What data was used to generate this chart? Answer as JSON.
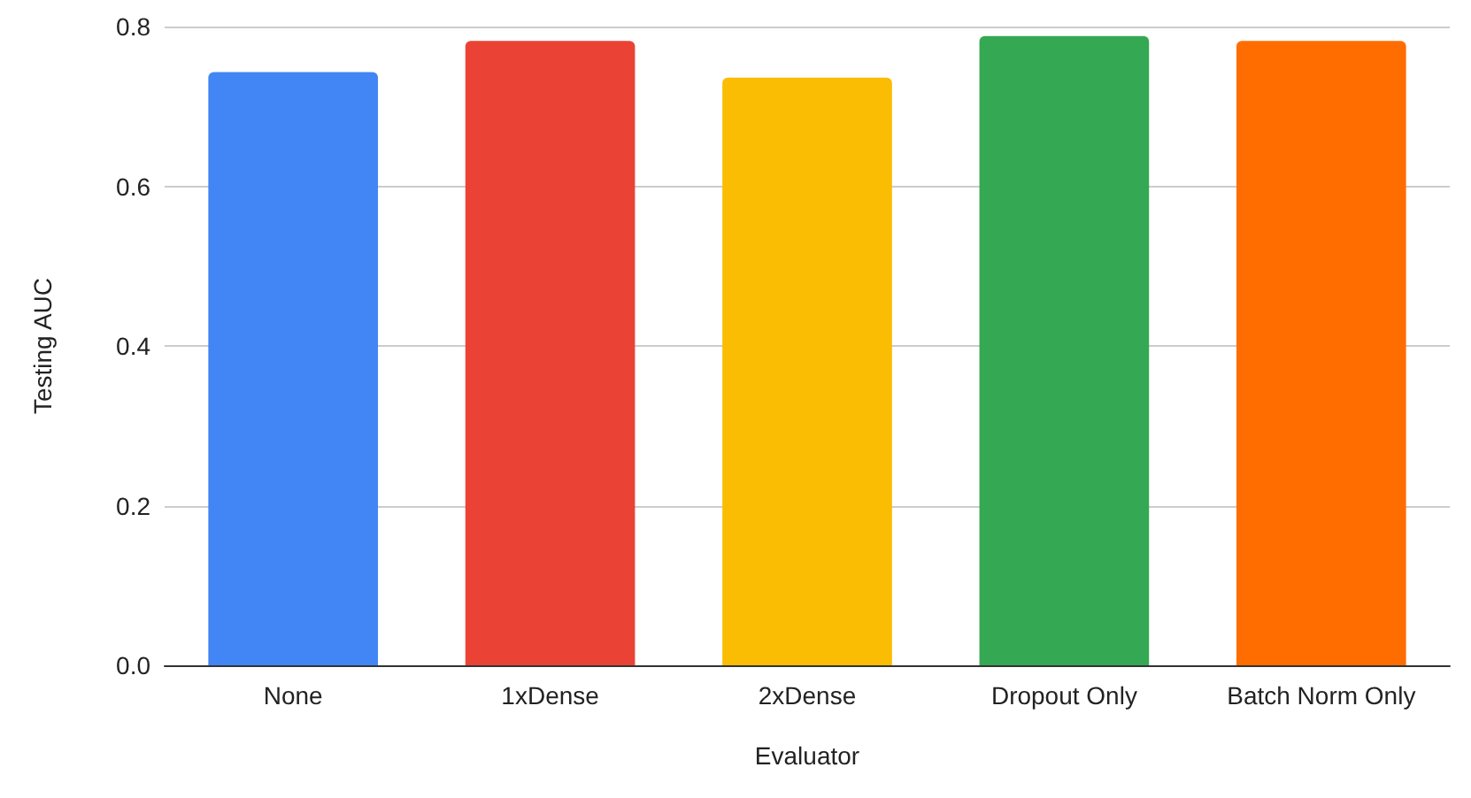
{
  "chart_data": {
    "type": "bar",
    "xlabel": "Evaluator",
    "ylabel": "Testing AUC",
    "categories": [
      "None",
      "1xDense",
      "2xDense",
      "Dropout Only",
      "Batch Norm Only"
    ],
    "values": [
      0.743,
      0.782,
      0.736,
      0.788,
      0.782
    ],
    "colors": [
      "#4285f4",
      "#ea4335",
      "#fbbc04",
      "#34a853",
      "#ff6d01"
    ],
    "ylim": [
      0,
      0.8
    ],
    "yticks": [
      {
        "value": 0,
        "label": "0.0"
      },
      0.2,
      0.4,
      0.6,
      0.8
    ],
    "grid": "y"
  }
}
